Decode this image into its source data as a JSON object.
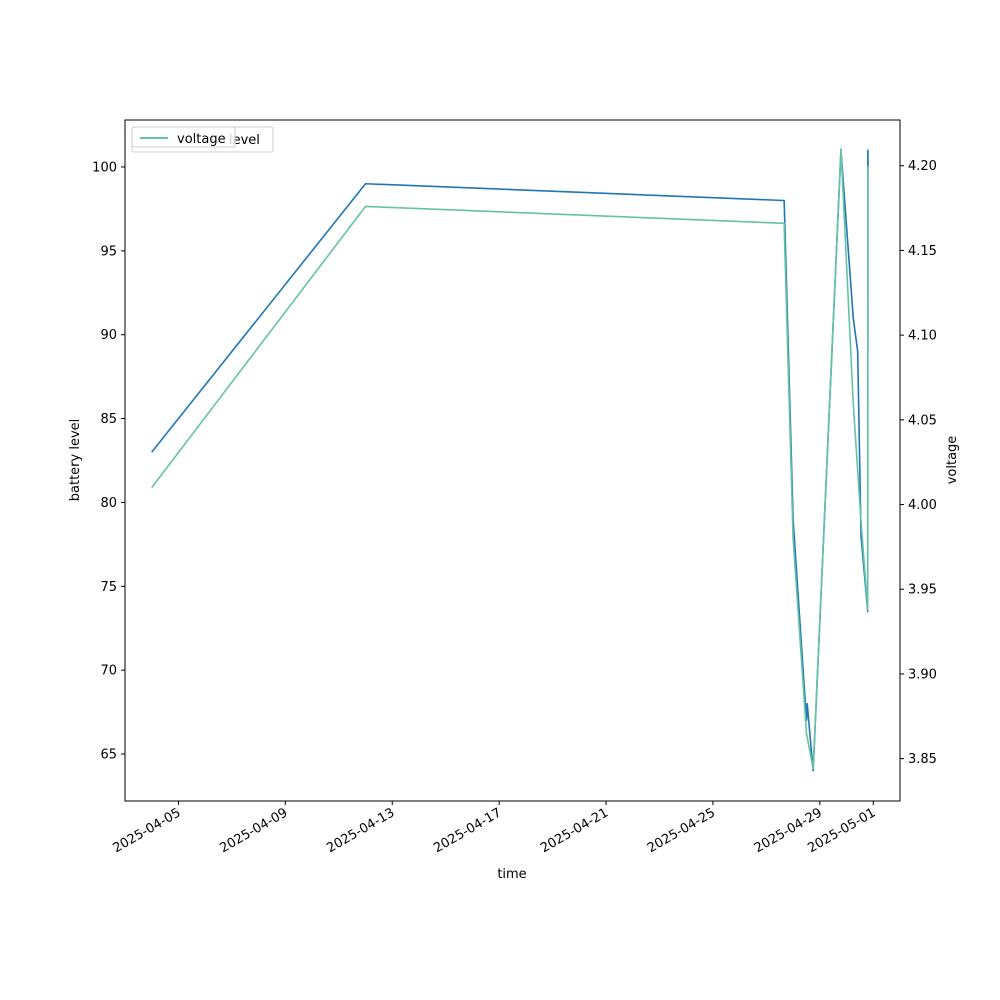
{
  "chart_data": {
    "type": "line",
    "title": "",
    "xlabel": "time",
    "ylabel_left": "battery level",
    "ylabel_right": "voltage",
    "xlim": [
      "2025-04-03",
      "2025-05-02"
    ],
    "ylim_left": [
      62.2,
      102.8
    ],
    "ylim_right": [
      3.825,
      4.227
    ],
    "x_ticks": [
      "2025-04-05",
      "2025-04-09",
      "2025-04-13",
      "2025-04-17",
      "2025-04-21",
      "2025-04-25",
      "2025-04-29",
      "2025-05-01"
    ],
    "y_ticks_left": [
      65,
      70,
      75,
      80,
      85,
      90,
      95,
      100
    ],
    "y_ticks_right": [
      "3.85",
      "3.90",
      "3.95",
      "4.00",
      "4.05",
      "4.10",
      "4.15",
      "4.20"
    ],
    "grid": false,
    "legend_placement": "upper-left",
    "series": [
      {
        "name": "level",
        "axis": "left",
        "color": "#1f77b4",
        "points": [
          [
            "2025-04-04 00:00",
            83
          ],
          [
            "2025-04-12 00:00",
            99
          ],
          [
            "2025-04-27 16:00",
            98
          ],
          [
            "2025-04-27 16:10",
            97.5
          ],
          [
            "2025-04-28 00:00",
            79
          ],
          [
            "2025-04-28 12:00",
            67
          ],
          [
            "2025-04-28 12:40",
            68
          ],
          [
            "2025-04-28 18:00",
            64
          ],
          [
            "2025-04-29 19:00",
            101
          ],
          [
            "2025-04-30 06:00",
            91
          ],
          [
            "2025-04-30 10:00",
            89
          ],
          [
            "2025-04-30 13:00",
            78
          ],
          [
            "2025-04-30 19:00",
            73.5
          ],
          [
            "2025-04-30 19:10",
            101
          ],
          [
            "2025-04-30 19:20",
            100
          ]
        ]
      },
      {
        "name": "voltage",
        "axis": "right",
        "color": "#66c2a5",
        "points": [
          [
            "2025-04-04 00:00",
            4.01
          ],
          [
            "2025-04-12 00:00",
            4.176
          ],
          [
            "2025-04-27 16:00",
            4.166
          ],
          [
            "2025-04-27 16:10",
            4.16
          ],
          [
            "2025-04-28 00:00",
            3.98
          ],
          [
            "2025-04-28 12:00",
            3.865
          ],
          [
            "2025-04-28 18:00",
            3.844
          ],
          [
            "2025-04-29 19:00",
            4.21
          ],
          [
            "2025-04-30 06:00",
            4.06
          ],
          [
            "2025-04-30 13:00",
            3.99
          ],
          [
            "2025-04-30 19:00",
            3.938
          ],
          [
            "2025-04-30 19:10",
            4.2
          ]
        ]
      }
    ],
    "legend_left": {
      "label": "level",
      "color": "#1f77b4"
    },
    "legend_right": {
      "label": "voltage",
      "color": "#66c2a5"
    }
  }
}
